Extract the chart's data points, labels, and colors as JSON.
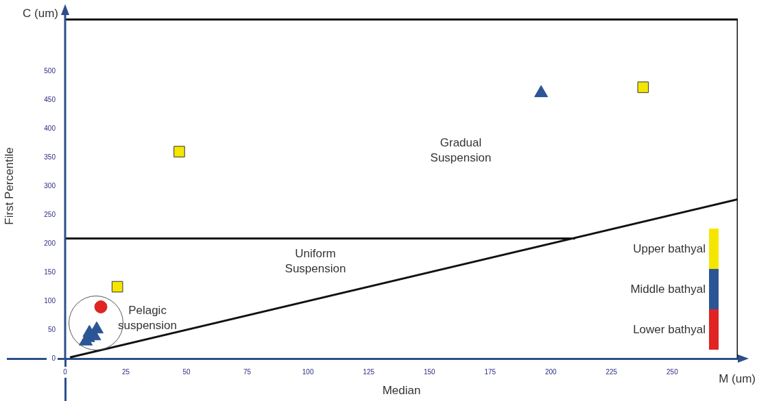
{
  "chart_data": {
    "type": "scatter",
    "xlabel": "Median",
    "ylabel": "First Percentile",
    "xlim": [
      0,
      277
    ],
    "ylim": [
      0,
      600
    ],
    "xticks": [
      0,
      25,
      50,
      75,
      100,
      125,
      150,
      175,
      200,
      225,
      250
    ],
    "yticks": [
      0,
      50,
      100,
      150,
      200,
      250,
      300,
      350,
      400,
      450,
      500
    ],
    "grid": false,
    "legend": "bottom right",
    "series": [
      {
        "name": "Upper bathyal",
        "color": "#f5e600",
        "marker": "square",
        "x": [
          21.5,
          47,
          238
        ],
        "values": [
          125,
          360,
          472
        ]
      },
      {
        "name": "Middle bathyal",
        "color": "#2c5596",
        "marker": "triangle",
        "x": [
          8.5,
          9.5,
          10,
          12,
          13,
          196
        ],
        "values": [
          30,
          36,
          45,
          39,
          51,
          462
        ]
      },
      {
        "name": "Lower bathyal",
        "color": "#e02424",
        "marker": "circle",
        "x": [
          14.7
        ],
        "values": [
          90
        ]
      },
      {
        "type": "line",
        "color": "#111111",
        "marker": "none",
        "x": [
          0,
          210
        ],
        "values": [
          209,
          209
        ]
      },
      {
        "type": "line",
        "color": "#111111",
        "marker": "none",
        "x": [
          2,
          277
        ],
        "values": [
          2,
          277
        ]
      },
      {
        "type": "line",
        "color": "#111111",
        "marker": "none",
        "x": [
          0,
          277,
          277
        ],
        "values": [
          590,
          590,
          0
        ]
      }
    ],
    "ref_lines": [
      {
        "axis": "x",
        "value": 0,
        "color": "#2c4f8c"
      }
    ],
    "annotations": [
      "C (um)",
      "M (um)",
      "Gradual\nSuspension",
      "Uniform\nSuspension",
      "Pelagic\nsuspension"
    ]
  }
}
